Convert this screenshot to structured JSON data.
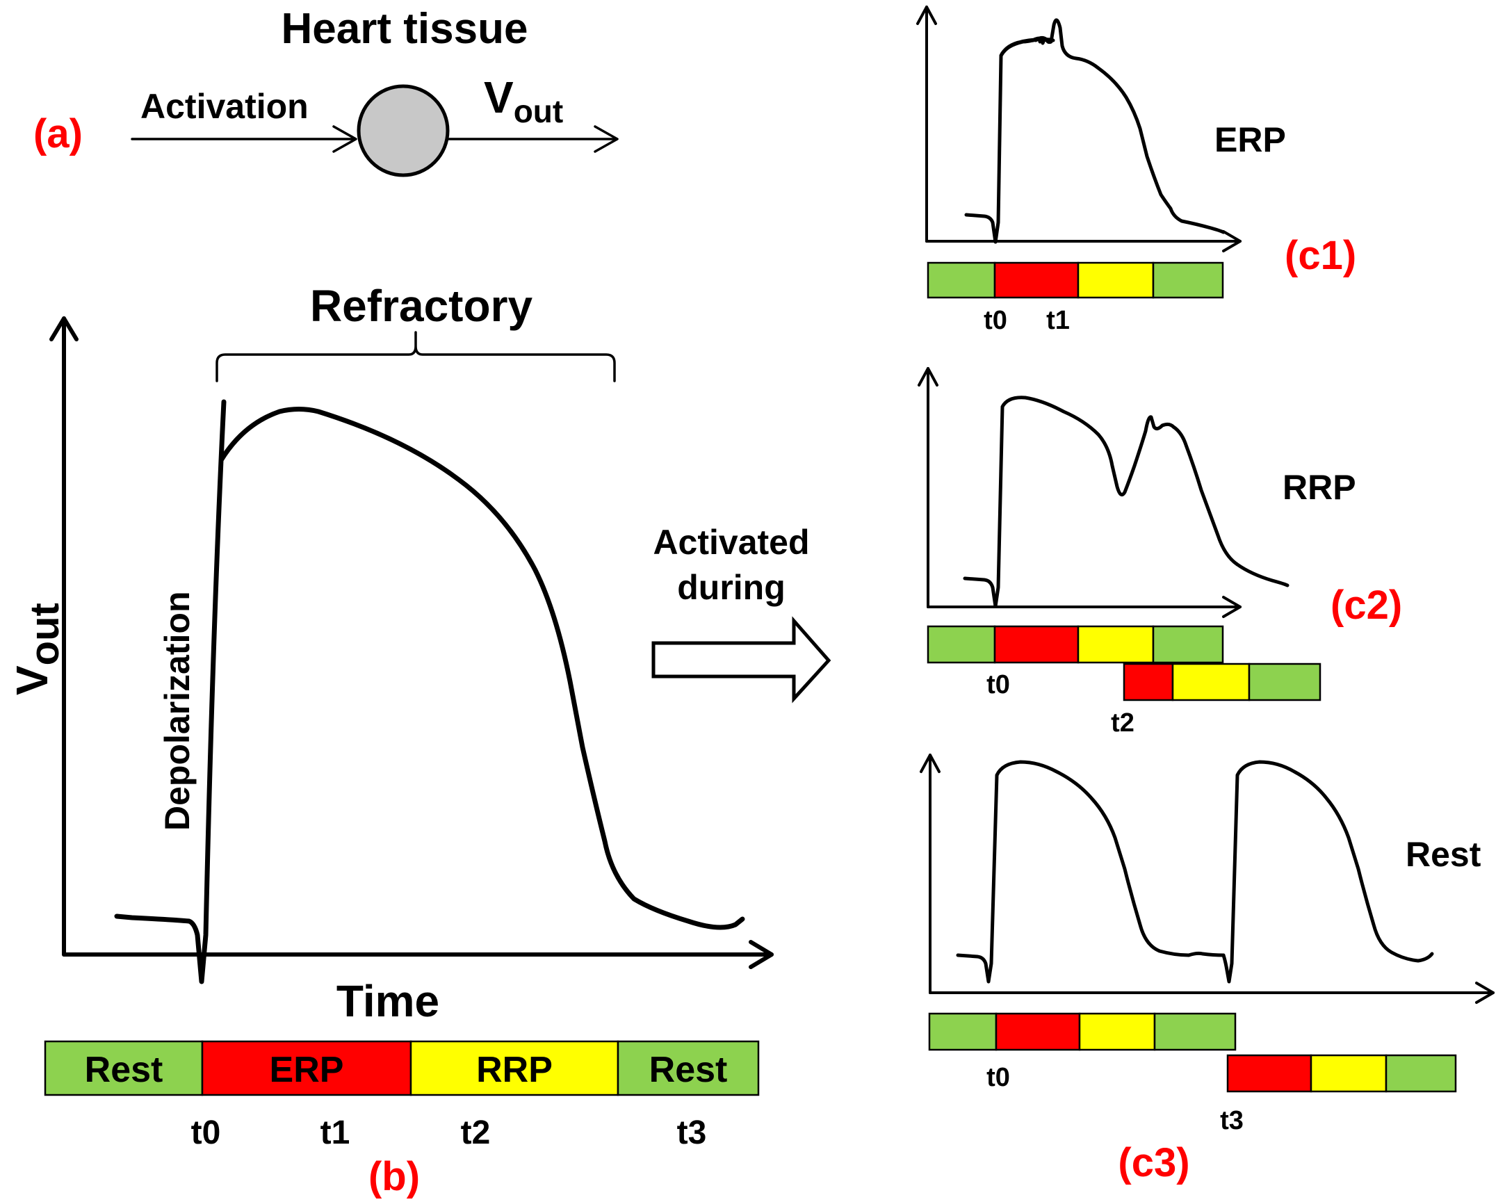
{
  "colors": {
    "rest": "#8dd24f",
    "erp": "#ff0000",
    "rrp": "#ffff00",
    "panel_label": "#ff0000",
    "node_fill": "#c8c8c8"
  },
  "panel_a": {
    "label": "(a)",
    "title": "Heart tissue",
    "input_label": "Activation",
    "output_label": "V",
    "output_sub": "out"
  },
  "panel_b": {
    "label": "(b)",
    "y_label": "V",
    "y_label_sub": "out",
    "x_label": "Time",
    "bracket_label": "Refractory",
    "upstroke_label": "Depolarization",
    "phase_bar": [
      {
        "text": "Rest",
        "phase": "rest"
      },
      {
        "text": "ERP",
        "phase": "erp"
      },
      {
        "text": "RRP",
        "phase": "rrp"
      },
      {
        "text": "Rest",
        "phase": "rest"
      }
    ],
    "ticks": [
      "t0",
      "t1",
      "t2",
      "t3"
    ]
  },
  "transition": {
    "line1": "Activated",
    "line2": "during"
  },
  "panel_c1": {
    "label": "(c1)",
    "case_label": "ERP",
    "ticks": [
      "t0",
      "t1"
    ]
  },
  "panel_c2": {
    "label": "(c2)",
    "case_label": "RRP",
    "ticks": [
      "t0",
      "t2"
    ]
  },
  "panel_c3": {
    "label": "(c3)",
    "case_label": "Rest",
    "ticks": [
      "t0",
      "t3"
    ]
  }
}
